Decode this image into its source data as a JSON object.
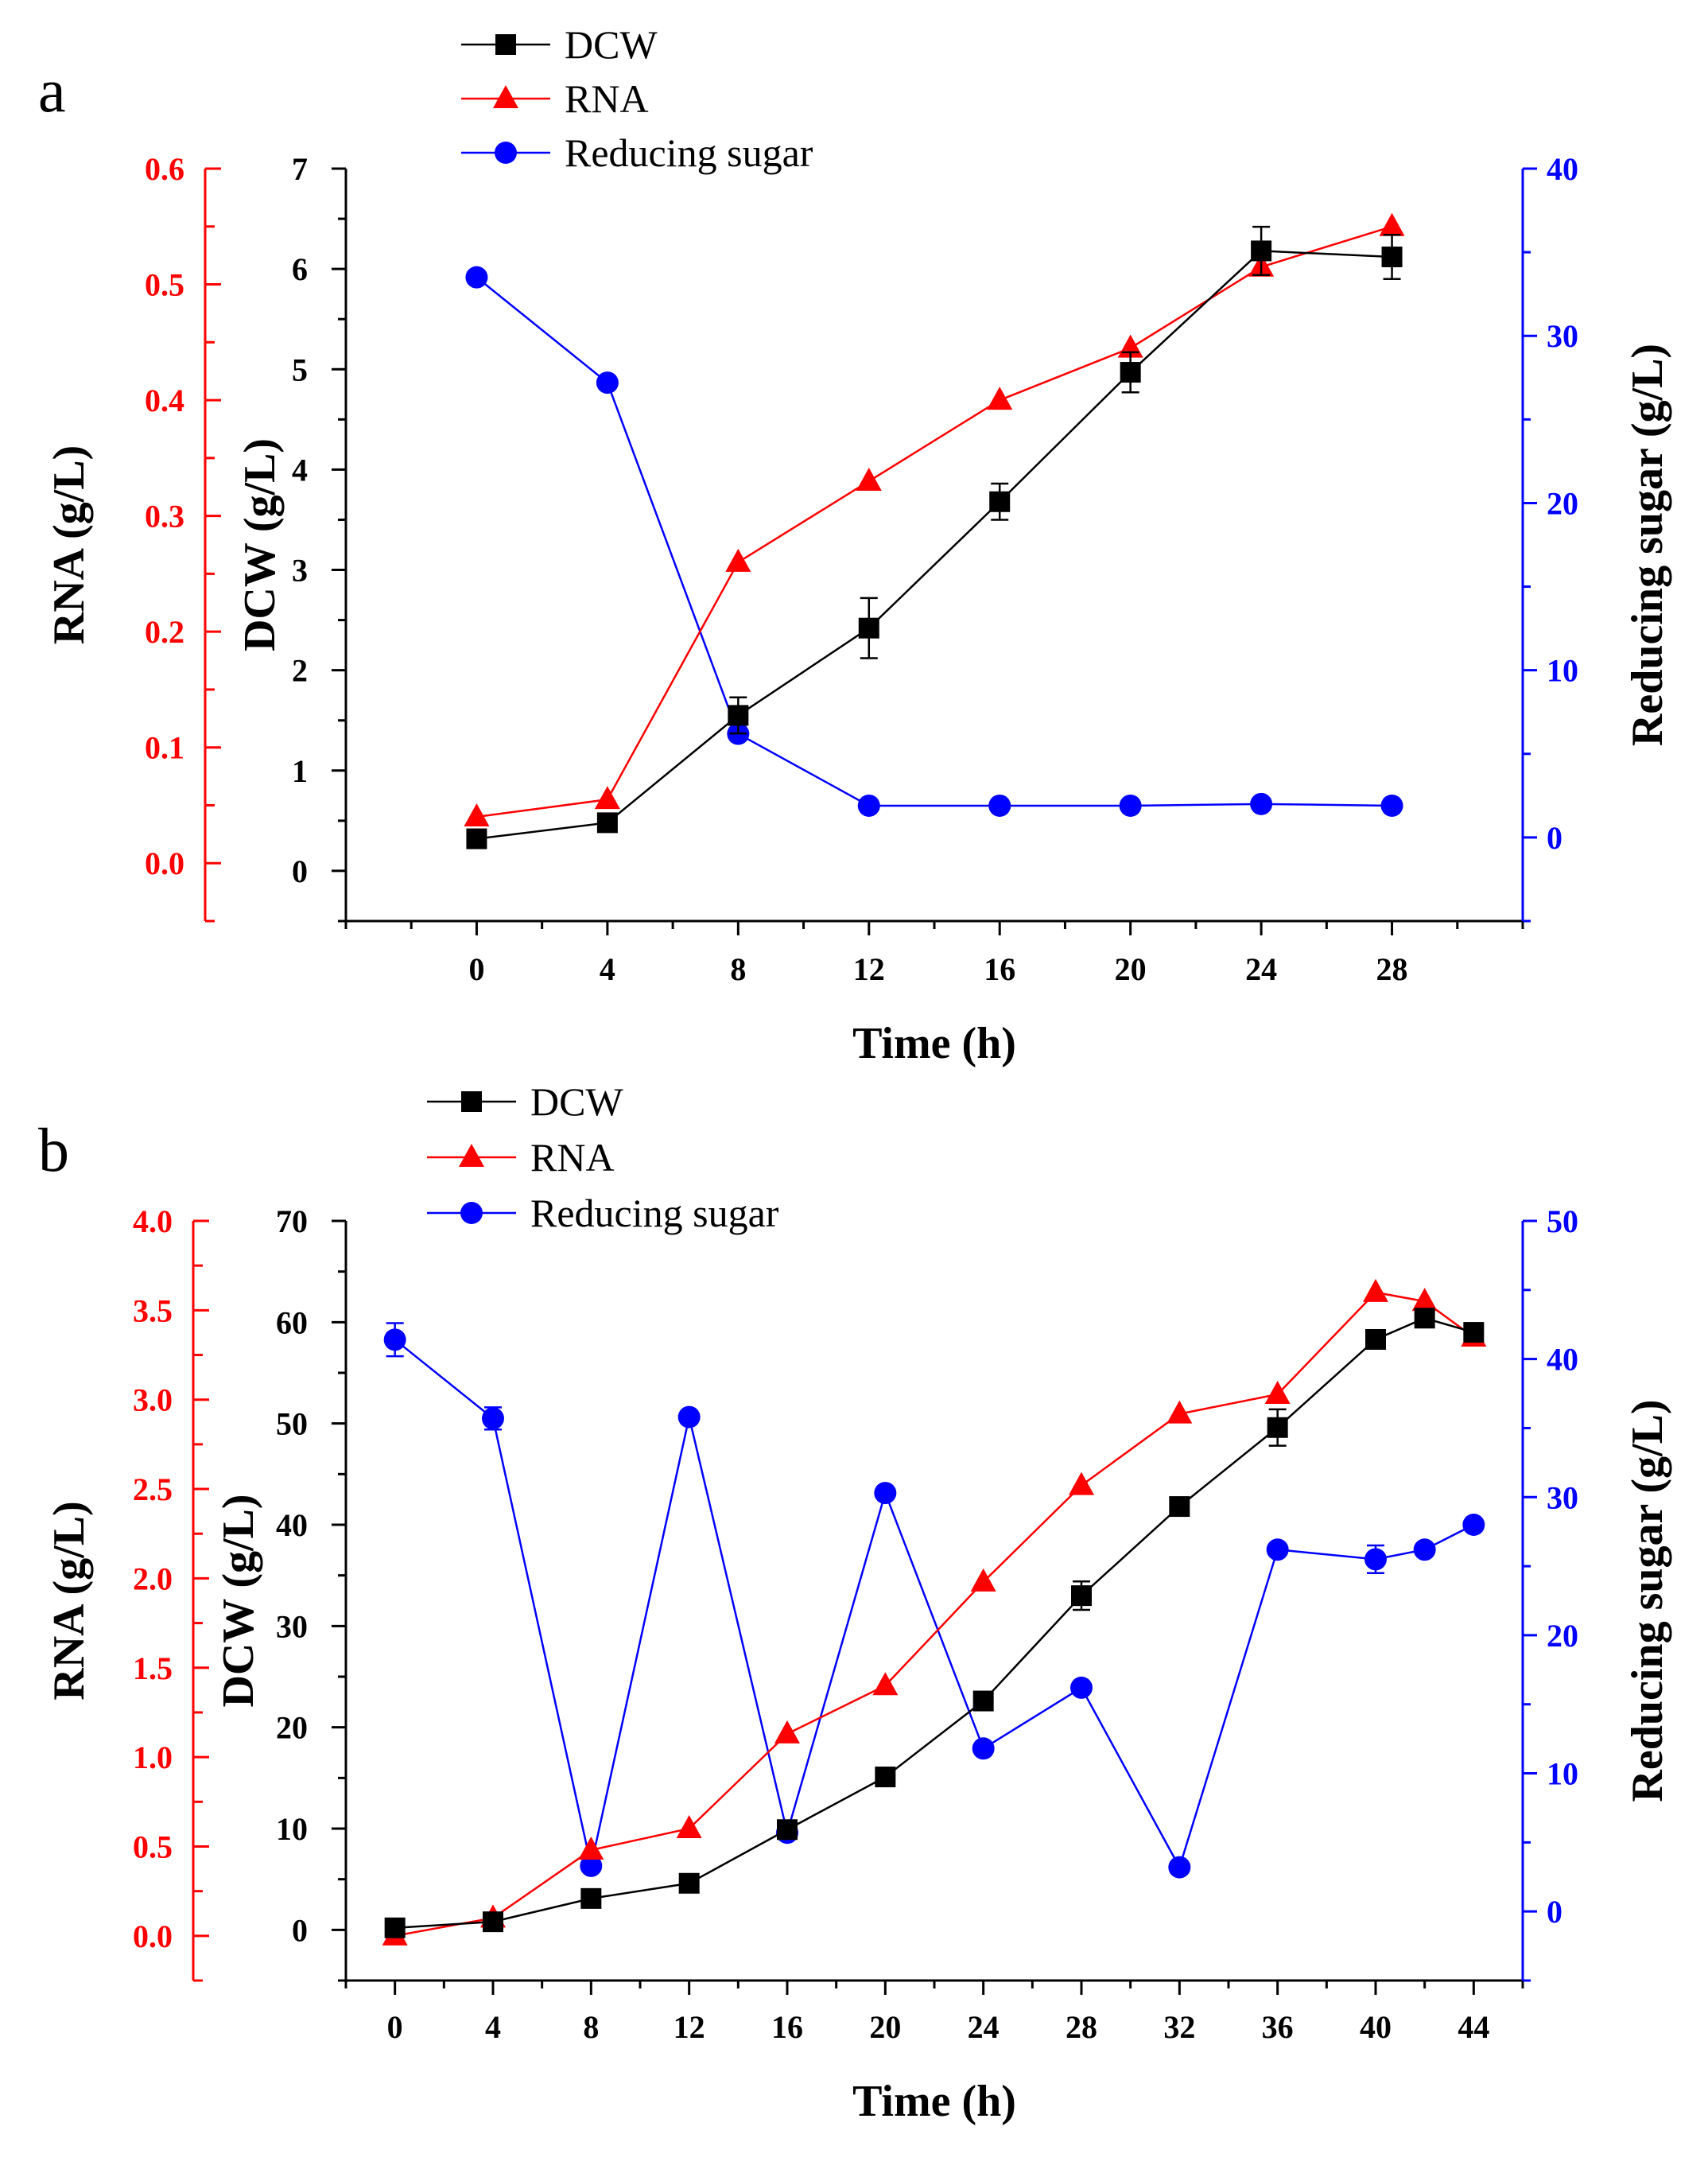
{
  "figure": {
    "panels": [
      "a",
      "b"
    ]
  },
  "colors": {
    "dcw": "#000000",
    "rna": "#ff0000",
    "sugar": "#0000ff",
    "axis": "#000000"
  },
  "chart_data": [
    {
      "panel": "a",
      "type": "line",
      "xlabel": "Time (h)",
      "xlim": [
        -4,
        32
      ],
      "xticks": [
        0,
        4,
        8,
        12,
        16,
        20,
        24,
        28
      ],
      "axes": {
        "rna": {
          "label": "RNA (g/L)",
          "ylim": [
            -0.05,
            0.6
          ],
          "ticks": [
            0.0,
            0.1,
            0.2,
            0.3,
            0.4,
            0.5,
            0.6
          ],
          "tick_labels": [
            "0.0",
            "0.1",
            "0.2",
            "0.3",
            "0.4",
            "0.5",
            "0.6"
          ]
        },
        "dcw": {
          "label": "DCW (g/L)",
          "ylim": [
            -0.5,
            7
          ],
          "ticks": [
            0,
            1,
            2,
            3,
            4,
            5,
            6,
            7
          ],
          "tick_labels": [
            "0",
            "1",
            "2",
            "3",
            "4",
            "5",
            "6",
            "7"
          ]
        },
        "sugar": {
          "label": "Reducing sugar (g/L)",
          "ylim": [
            -5,
            40
          ],
          "ticks": [
            0,
            10,
            20,
            30,
            40
          ],
          "tick_labels": [
            "0",
            "10",
            "20",
            "30",
            "40"
          ]
        }
      },
      "series": [
        {
          "key": "dcw",
          "name": "DCW",
          "axis": "dcw",
          "marker": "square",
          "x": [
            0,
            4,
            8,
            12,
            16,
            20,
            24,
            28
          ],
          "y": [
            0.32,
            0.48,
            1.55,
            2.42,
            3.68,
            4.97,
            6.18,
            6.12
          ],
          "err": [
            0,
            0,
            0.18,
            0.3,
            0.18,
            0.2,
            0.24,
            0.22
          ]
        },
        {
          "key": "rna",
          "name": "RNA",
          "axis": "rna",
          "marker": "triangle",
          "x": [
            0,
            4,
            8,
            12,
            16,
            20,
            24,
            28
          ],
          "y": [
            0.04,
            0.055,
            0.26,
            0.33,
            0.4,
            0.445,
            0.515,
            0.55
          ],
          "err": [
            0,
            0,
            0,
            0,
            0,
            0,
            0,
            0
          ]
        },
        {
          "key": "sugar",
          "name": "Reducing sugar",
          "axis": "sugar",
          "marker": "circle",
          "x": [
            0,
            4,
            8,
            12,
            16,
            20,
            24,
            28
          ],
          "y": [
            33.5,
            27.2,
            6.2,
            1.9,
            1.9,
            1.9,
            2.0,
            1.9
          ],
          "err": [
            0,
            0,
            0,
            0,
            0,
            0,
            0,
            0
          ]
        }
      ],
      "legend": [
        "DCW",
        "RNA",
        "Reducing sugar"
      ]
    },
    {
      "panel": "b",
      "type": "line",
      "xlabel": "Time (h)",
      "xlim": [
        -2,
        46
      ],
      "xticks": [
        0,
        4,
        8,
        12,
        16,
        20,
        24,
        28,
        32,
        36,
        40,
        44
      ],
      "axes": {
        "rna": {
          "label": "RNA (g/L)",
          "ylim": [
            -0.25,
            4.0
          ],
          "ticks": [
            0.0,
            0.5,
            1.0,
            1.5,
            2.0,
            2.5,
            3.0,
            3.5,
            4.0
          ],
          "tick_labels": [
            "0.0",
            "0.5",
            "1.0",
            "1.5",
            "2.0",
            "2.5",
            "3.0",
            "3.5",
            "4.0"
          ]
        },
        "dcw": {
          "label": "DCW (g/L)",
          "ylim": [
            -5,
            70
          ],
          "ticks": [
            0,
            10,
            20,
            30,
            40,
            50,
            60,
            70
          ],
          "tick_labels": [
            "0",
            "10",
            "20",
            "30",
            "40",
            "50",
            "60",
            "70"
          ]
        },
        "sugar": {
          "label": "Reducing sugar (g/L)",
          "ylim": [
            -5,
            50
          ],
          "ticks": [
            0,
            10,
            20,
            30,
            40,
            50
          ],
          "tick_labels": [
            "0",
            "10",
            "20",
            "30",
            "40",
            "50"
          ]
        }
      },
      "series": [
        {
          "key": "dcw",
          "name": "DCW",
          "axis": "dcw",
          "marker": "square",
          "x": [
            0,
            4,
            8,
            12,
            16,
            20,
            24,
            28,
            32,
            36,
            40,
            42,
            44
          ],
          "y": [
            0.2,
            0.8,
            3.1,
            4.6,
            9.9,
            15.1,
            22.6,
            33.0,
            41.8,
            49.6,
            58.3,
            60.4,
            59.0
          ],
          "err": [
            0,
            0,
            0,
            0,
            0,
            0,
            0,
            1.4,
            0,
            1.8,
            0,
            0,
            0
          ]
        },
        {
          "key": "rna",
          "name": "RNA",
          "axis": "rna",
          "marker": "triangle",
          "x": [
            0,
            4,
            8,
            12,
            16,
            20,
            24,
            28,
            32,
            36,
            40,
            42,
            44
          ],
          "y": [
            0.0,
            0.1,
            0.48,
            0.6,
            1.13,
            1.4,
            1.98,
            2.52,
            2.92,
            3.03,
            3.6,
            3.55,
            3.35
          ],
          "err": [
            0,
            0,
            0,
            0,
            0,
            0,
            0,
            0,
            0,
            0,
            0,
            0,
            0
          ]
        },
        {
          "key": "sugar",
          "name": "Reducing sugar",
          "axis": "sugar",
          "marker": "circle",
          "x": [
            0,
            4,
            8,
            12,
            16,
            20,
            24,
            28,
            32,
            36,
            40,
            42,
            44
          ],
          "y": [
            41.4,
            35.7,
            3.3,
            35.8,
            5.7,
            30.3,
            11.8,
            16.2,
            3.2,
            26.2,
            25.5,
            26.2,
            28.0
          ],
          "err": [
            1.2,
            0.8,
            0,
            0,
            0,
            0,
            0,
            0,
            0,
            0,
            1.0,
            0,
            0
          ]
        }
      ],
      "legend": [
        "DCW",
        "RNA",
        "Reducing sugar"
      ]
    }
  ]
}
